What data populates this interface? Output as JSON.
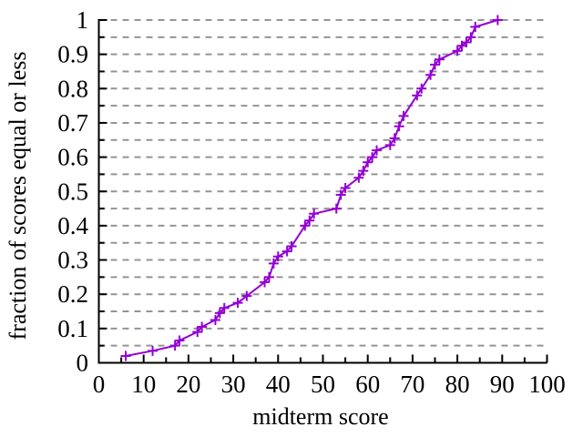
{
  "chart_data": {
    "type": "line",
    "title": "",
    "xlabel": "midterm score",
    "ylabel": "fraction of scores equal or less",
    "xlim": [
      0,
      100
    ],
    "ylim": [
      0,
      1
    ],
    "x_tick_labels": [
      "0",
      "10",
      "20",
      "30",
      "40",
      "50",
      "60",
      "70",
      "80",
      "90",
      "100"
    ],
    "x_major_ticks": [
      0,
      10,
      20,
      30,
      40,
      50,
      60,
      70,
      80,
      90,
      100
    ],
    "x_minor_step": 5,
    "y_tick_labels": [
      "0",
      "0.1",
      "0.2",
      "0.3",
      "0.4",
      "0.5",
      "0.6",
      "0.7",
      "0.8",
      "0.9",
      "1"
    ],
    "y_major_ticks": [
      0,
      0.1,
      0.2,
      0.3,
      0.4,
      0.5,
      0.6,
      0.7,
      0.8,
      0.9,
      1
    ],
    "y_minor_step": 0.05,
    "grid": "horizontal-dashed-every-0.05",
    "legend": "none",
    "marker": "plus",
    "colors": {
      "series": "#9400d3",
      "grid": "#949494",
      "axis": "#000000",
      "background": "#ffffff"
    },
    "points": [
      [
        6,
        0.02
      ],
      [
        12,
        0.035
      ],
      [
        17,
        0.05
      ],
      [
        18,
        0.065
      ],
      [
        22,
        0.09
      ],
      [
        23,
        0.105
      ],
      [
        26,
        0.125
      ],
      [
        27,
        0.145
      ],
      [
        28,
        0.16
      ],
      [
        31,
        0.175
      ],
      [
        33,
        0.195
      ],
      [
        37,
        0.235
      ],
      [
        38,
        0.25
      ],
      [
        39,
        0.29
      ],
      [
        40,
        0.31
      ],
      [
        42,
        0.325
      ],
      [
        43,
        0.34
      ],
      [
        46,
        0.4
      ],
      [
        47,
        0.415
      ],
      [
        48,
        0.435
      ],
      [
        53,
        0.45
      ],
      [
        54,
        0.49
      ],
      [
        55,
        0.51
      ],
      [
        58,
        0.54
      ],
      [
        59,
        0.56
      ],
      [
        60,
        0.585
      ],
      [
        61,
        0.6
      ],
      [
        62,
        0.62
      ],
      [
        65,
        0.635
      ],
      [
        66,
        0.655
      ],
      [
        67,
        0.69
      ],
      [
        68,
        0.72
      ],
      [
        71,
        0.78
      ],
      [
        72,
        0.8
      ],
      [
        74,
        0.84
      ],
      [
        75,
        0.87
      ],
      [
        76,
        0.885
      ],
      [
        80,
        0.91
      ],
      [
        81,
        0.925
      ],
      [
        82,
        0.935
      ],
      [
        83,
        0.95
      ],
      [
        84,
        0.98
      ],
      [
        89,
        1.0
      ]
    ]
  }
}
